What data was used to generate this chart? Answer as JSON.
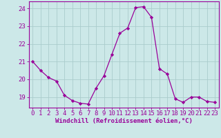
{
  "x": [
    0,
    1,
    2,
    3,
    4,
    5,
    6,
    7,
    8,
    9,
    10,
    11,
    12,
    13,
    14,
    15,
    16,
    17,
    18,
    19,
    20,
    21,
    22,
    23
  ],
  "y": [
    21.0,
    20.5,
    20.1,
    19.9,
    19.1,
    18.8,
    18.65,
    18.6,
    19.5,
    20.2,
    21.4,
    22.6,
    22.9,
    24.05,
    24.1,
    23.5,
    20.6,
    20.3,
    18.9,
    18.7,
    19.0,
    19.0,
    18.75,
    18.7
  ],
  "line_color": "#990099",
  "marker": "D",
  "marker_size": 2.2,
  "bg_color": "#cce8e8",
  "grid_color": "#aacccc",
  "xlabel": "Windchill (Refroidissement éolien,°C)",
  "ylabel": "",
  "title": "",
  "xlim": [
    -0.5,
    23.5
  ],
  "ylim": [
    18.4,
    24.4
  ],
  "xticks": [
    0,
    1,
    2,
    3,
    4,
    5,
    6,
    7,
    8,
    9,
    10,
    11,
    12,
    13,
    14,
    15,
    16,
    17,
    18,
    19,
    20,
    21,
    22,
    23
  ],
  "yticks": [
    19,
    20,
    21,
    22,
    23,
    24
  ],
  "xtick_labels": [
    "0",
    "1",
    "2",
    "3",
    "4",
    "5",
    "6",
    "7",
    "8",
    "9",
    "10",
    "11",
    "12",
    "13",
    "14",
    "15",
    "16",
    "17",
    "18",
    "19",
    "20",
    "21",
    "22",
    "23"
  ],
  "xlabel_fontsize": 6.5,
  "tick_fontsize": 6.5,
  "tick_color": "#990099",
  "axis_color": "#990099",
  "line_width": 0.9
}
